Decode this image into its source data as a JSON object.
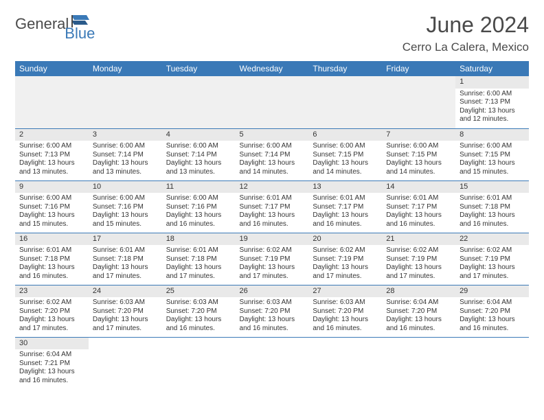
{
  "logo": {
    "general": "General",
    "blue": "Blue"
  },
  "title": "June 2024",
  "location": "Cerro La Calera, Mexico",
  "colors": {
    "header_bg": "#3a79b7",
    "header_fg": "#ffffff",
    "daynum_bg": "#e9e9e9",
    "cell_border": "#3a79b7",
    "logo_blue": "#3a79b7",
    "logo_gray": "#4a4a4a"
  },
  "weekdays": [
    "Sunday",
    "Monday",
    "Tuesday",
    "Wednesday",
    "Thursday",
    "Friday",
    "Saturday"
  ],
  "leading_blanks": 6,
  "days": [
    {
      "n": 1,
      "sunrise": "6:00 AM",
      "sunset": "7:13 PM",
      "daylight": "13 hours and 12 minutes."
    },
    {
      "n": 2,
      "sunrise": "6:00 AM",
      "sunset": "7:13 PM",
      "daylight": "13 hours and 13 minutes."
    },
    {
      "n": 3,
      "sunrise": "6:00 AM",
      "sunset": "7:14 PM",
      "daylight": "13 hours and 13 minutes."
    },
    {
      "n": 4,
      "sunrise": "6:00 AM",
      "sunset": "7:14 PM",
      "daylight": "13 hours and 13 minutes."
    },
    {
      "n": 5,
      "sunrise": "6:00 AM",
      "sunset": "7:14 PM",
      "daylight": "13 hours and 14 minutes."
    },
    {
      "n": 6,
      "sunrise": "6:00 AM",
      "sunset": "7:15 PM",
      "daylight": "13 hours and 14 minutes."
    },
    {
      "n": 7,
      "sunrise": "6:00 AM",
      "sunset": "7:15 PM",
      "daylight": "13 hours and 14 minutes."
    },
    {
      "n": 8,
      "sunrise": "6:00 AM",
      "sunset": "7:15 PM",
      "daylight": "13 hours and 15 minutes."
    },
    {
      "n": 9,
      "sunrise": "6:00 AM",
      "sunset": "7:16 PM",
      "daylight": "13 hours and 15 minutes."
    },
    {
      "n": 10,
      "sunrise": "6:00 AM",
      "sunset": "7:16 PM",
      "daylight": "13 hours and 15 minutes."
    },
    {
      "n": 11,
      "sunrise": "6:00 AM",
      "sunset": "7:16 PM",
      "daylight": "13 hours and 16 minutes."
    },
    {
      "n": 12,
      "sunrise": "6:01 AM",
      "sunset": "7:17 PM",
      "daylight": "13 hours and 16 minutes."
    },
    {
      "n": 13,
      "sunrise": "6:01 AM",
      "sunset": "7:17 PM",
      "daylight": "13 hours and 16 minutes."
    },
    {
      "n": 14,
      "sunrise": "6:01 AM",
      "sunset": "7:17 PM",
      "daylight": "13 hours and 16 minutes."
    },
    {
      "n": 15,
      "sunrise": "6:01 AM",
      "sunset": "7:18 PM",
      "daylight": "13 hours and 16 minutes."
    },
    {
      "n": 16,
      "sunrise": "6:01 AM",
      "sunset": "7:18 PM",
      "daylight": "13 hours and 16 minutes."
    },
    {
      "n": 17,
      "sunrise": "6:01 AM",
      "sunset": "7:18 PM",
      "daylight": "13 hours and 17 minutes."
    },
    {
      "n": 18,
      "sunrise": "6:01 AM",
      "sunset": "7:18 PM",
      "daylight": "13 hours and 17 minutes."
    },
    {
      "n": 19,
      "sunrise": "6:02 AM",
      "sunset": "7:19 PM",
      "daylight": "13 hours and 17 minutes."
    },
    {
      "n": 20,
      "sunrise": "6:02 AM",
      "sunset": "7:19 PM",
      "daylight": "13 hours and 17 minutes."
    },
    {
      "n": 21,
      "sunrise": "6:02 AM",
      "sunset": "7:19 PM",
      "daylight": "13 hours and 17 minutes."
    },
    {
      "n": 22,
      "sunrise": "6:02 AM",
      "sunset": "7:19 PM",
      "daylight": "13 hours and 17 minutes."
    },
    {
      "n": 23,
      "sunrise": "6:02 AM",
      "sunset": "7:20 PM",
      "daylight": "13 hours and 17 minutes."
    },
    {
      "n": 24,
      "sunrise": "6:03 AM",
      "sunset": "7:20 PM",
      "daylight": "13 hours and 17 minutes."
    },
    {
      "n": 25,
      "sunrise": "6:03 AM",
      "sunset": "7:20 PM",
      "daylight": "13 hours and 16 minutes."
    },
    {
      "n": 26,
      "sunrise": "6:03 AM",
      "sunset": "7:20 PM",
      "daylight": "13 hours and 16 minutes."
    },
    {
      "n": 27,
      "sunrise": "6:03 AM",
      "sunset": "7:20 PM",
      "daylight": "13 hours and 16 minutes."
    },
    {
      "n": 28,
      "sunrise": "6:04 AM",
      "sunset": "7:20 PM",
      "daylight": "13 hours and 16 minutes."
    },
    {
      "n": 29,
      "sunrise": "6:04 AM",
      "sunset": "7:20 PM",
      "daylight": "13 hours and 16 minutes."
    },
    {
      "n": 30,
      "sunrise": "6:04 AM",
      "sunset": "7:21 PM",
      "daylight": "13 hours and 16 minutes."
    }
  ],
  "labels": {
    "sunrise": "Sunrise:",
    "sunset": "Sunset:",
    "daylight": "Daylight:"
  }
}
